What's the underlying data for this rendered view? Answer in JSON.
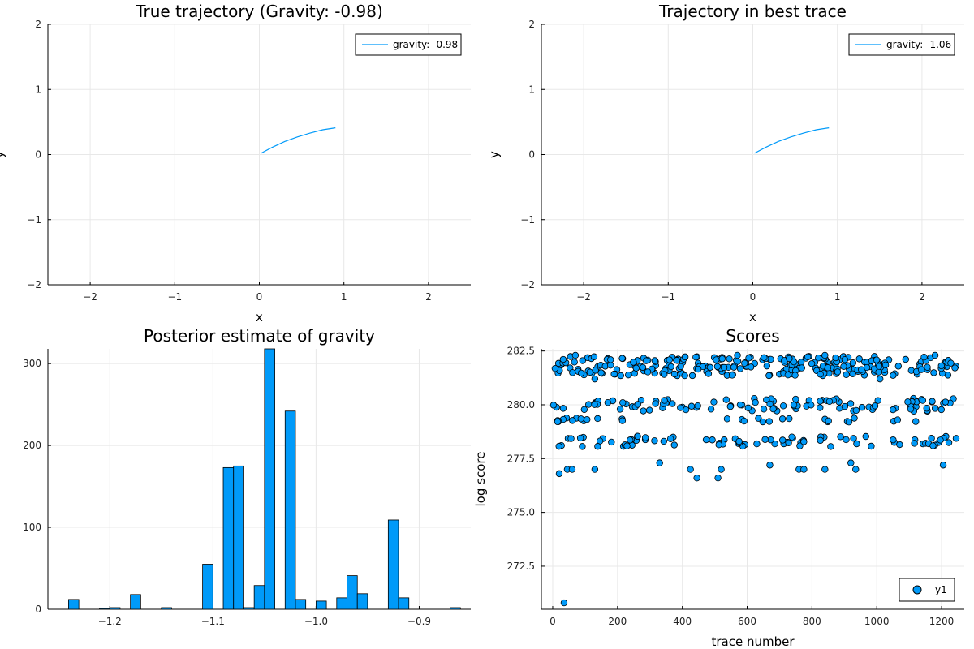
{
  "colors": {
    "series": "#009af9",
    "grid": "#e8e8e8",
    "text": "#000000"
  },
  "chart_data": [
    {
      "type": "line",
      "title": "True trajectory (Gravity: -0.98)",
      "xlabel": "x",
      "ylabel": "y",
      "xlim": [
        -2.5,
        2.5
      ],
      "ylim": [
        -2,
        2
      ],
      "xticks": [
        -2,
        -1,
        0,
        1,
        2
      ],
      "yticks": [
        -2,
        -1,
        0,
        1,
        2
      ],
      "grid": true,
      "legend_position": "top-right",
      "series": [
        {
          "name": "gravity: -0.98",
          "x": [
            0.02,
            0.15,
            0.3,
            0.45,
            0.6,
            0.75,
            0.9
          ],
          "y": [
            0.02,
            0.11,
            0.2,
            0.27,
            0.33,
            0.38,
            0.41
          ]
        }
      ]
    },
    {
      "type": "line",
      "title": "Trajectory in best trace",
      "xlabel": "x",
      "ylabel": "y",
      "xlim": [
        -2.5,
        2.5
      ],
      "ylim": [
        -2,
        2
      ],
      "xticks": [
        -2,
        -1,
        0,
        1,
        2
      ],
      "yticks": [
        -2,
        -1,
        0,
        1,
        2
      ],
      "grid": true,
      "legend_position": "top-right",
      "series": [
        {
          "name": "gravity: -1.06",
          "x": [
            0.02,
            0.15,
            0.3,
            0.45,
            0.6,
            0.75,
            0.9
          ],
          "y": [
            0.02,
            0.11,
            0.2,
            0.27,
            0.33,
            0.38,
            0.41
          ]
        }
      ]
    },
    {
      "type": "bar",
      "title": "Posterior estimate of gravity",
      "xlabel": "",
      "ylabel": "",
      "xlim": [
        -1.26,
        -0.85
      ],
      "ylim": [
        0,
        318
      ],
      "xticks": [
        -1.2,
        -1.1,
        -1.0,
        -0.9
      ],
      "xticklabels": [
        "−1.2",
        "−1.1",
        "−1.0",
        "−0.9"
      ],
      "yticks": [
        0,
        100,
        200,
        300
      ],
      "bin_width": 0.01,
      "grid": true,
      "bins": [
        {
          "x": -1.235,
          "v": 12
        },
        {
          "x": -1.205,
          "v": 1
        },
        {
          "x": -1.195,
          "v": 2
        },
        {
          "x": -1.175,
          "v": 18
        },
        {
          "x": -1.145,
          "v": 2
        },
        {
          "x": -1.105,
          "v": 55
        },
        {
          "x": -1.085,
          "v": 173
        },
        {
          "x": -1.075,
          "v": 175
        },
        {
          "x": -1.065,
          "v": 2
        },
        {
          "x": -1.055,
          "v": 29
        },
        {
          "x": -1.045,
          "v": 318
        },
        {
          "x": -1.025,
          "v": 242
        },
        {
          "x": -1.015,
          "v": 12
        },
        {
          "x": -0.995,
          "v": 10
        },
        {
          "x": -0.975,
          "v": 14
        },
        {
          "x": -0.965,
          "v": 41
        },
        {
          "x": -0.955,
          "v": 19
        },
        {
          "x": -0.925,
          "v": 109
        },
        {
          "x": -0.915,
          "v": 14
        },
        {
          "x": -0.865,
          "v": 2
        }
      ]
    },
    {
      "type": "scatter",
      "title": "Scores",
      "xlabel": "trace number",
      "ylabel": "log score",
      "xlim": [
        -35,
        1270
      ],
      "ylim": [
        270.5,
        282.6
      ],
      "xticks": [
        0,
        200,
        400,
        600,
        800,
        1000,
        1200
      ],
      "yticks": [
        272.5,
        275.0,
        277.5,
        280.0,
        282.5
      ],
      "yticklabels": [
        "272.5",
        "275.0",
        "277.5",
        "280.0",
        "282.5"
      ],
      "grid": true,
      "legend_position": "bottom-right",
      "series": [
        {
          "name": "y1",
          "bands": [
            {
              "y": 281.8,
              "spread": 0.45,
              "count": 260
            },
            {
              "y": 280.0,
              "spread": 0.3,
              "count": 110
            },
            {
              "y": 279.3,
              "spread": 0.1,
              "count": 30
            },
            {
              "y": 278.3,
              "spread": 0.25,
              "count": 80
            }
          ],
          "extra_points": [
            [
              20,
              276.8
            ],
            [
              45,
              277.0
            ],
            [
              60,
              277.0
            ],
            [
              130,
              277.0
            ],
            [
              330,
              277.3
            ],
            [
              425,
              277.0
            ],
            [
              445,
              276.6
            ],
            [
              510,
              276.6
            ],
            [
              520,
              277.0
            ],
            [
              670,
              277.2
            ],
            [
              760,
              277.0
            ],
            [
              775,
              277.0
            ],
            [
              840,
              277.0
            ],
            [
              920,
              277.3
            ],
            [
              935,
              277.0
            ],
            [
              1205,
              277.2
            ],
            [
              35,
              270.8
            ],
            [
              70,
              282.3
            ],
            [
              130,
              281.2
            ],
            [
              570,
              282.3
            ],
            [
              840,
              282.3
            ],
            [
              1010,
              281.2
            ],
            [
              1180,
              282.3
            ]
          ]
        }
      ]
    }
  ]
}
